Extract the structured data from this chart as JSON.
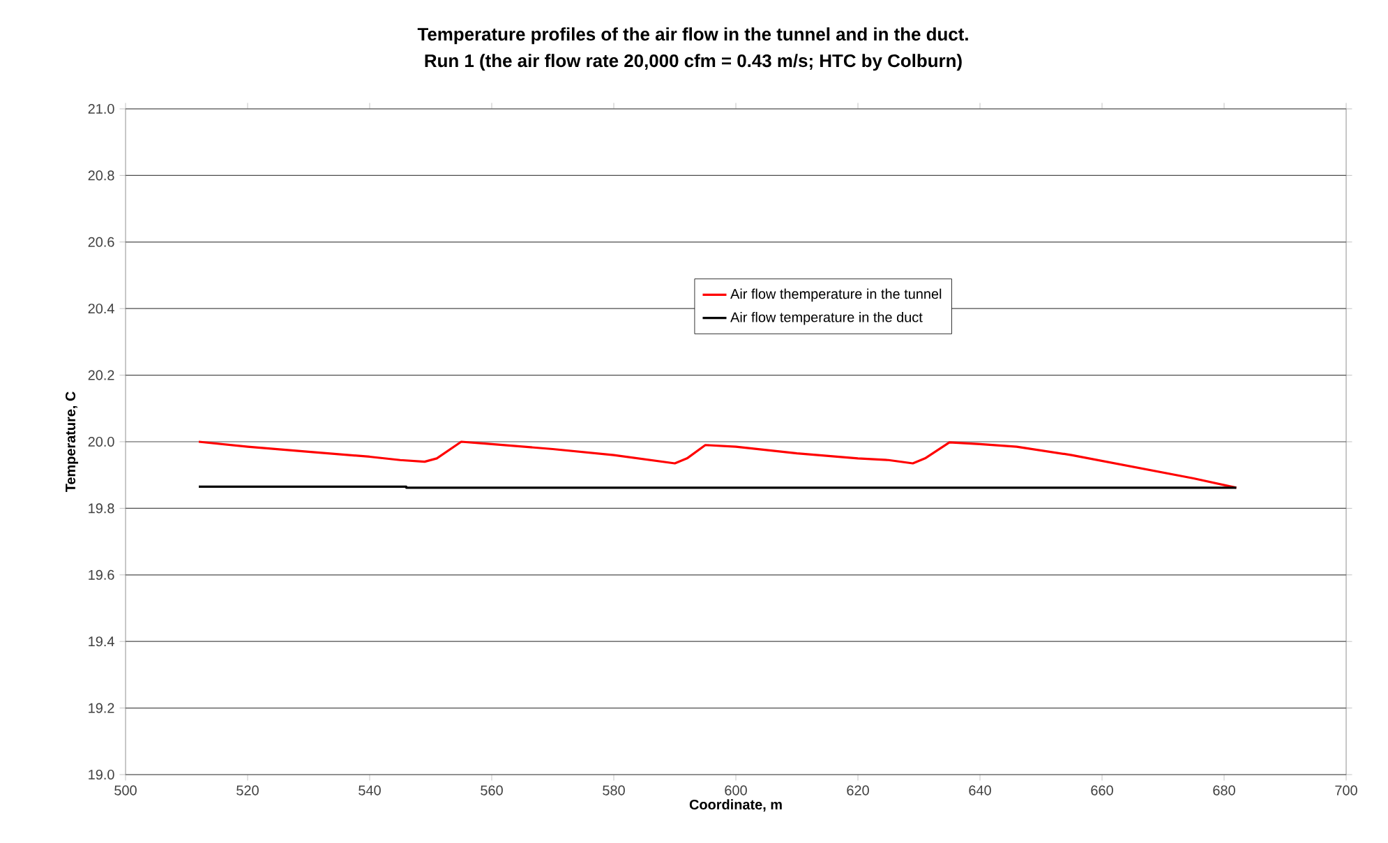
{
  "chart_data": {
    "type": "line",
    "title": "Temperature profiles of the air flow in the tunnel and in the duct.",
    "subtitle": "Run 1 (the air flow rate 20,000 cfm = 0.43 m/s; HTC by Colburn)",
    "xlabel": "Coordinate, m",
    "ylabel": "Temperature, C",
    "xlim": [
      500,
      700
    ],
    "xticks": [
      500,
      520,
      540,
      560,
      580,
      600,
      620,
      640,
      660,
      680,
      700
    ],
    "ylim": [
      19,
      21
    ],
    "yticks": [
      {
        "value": 19,
        "label": "19.0"
      },
      {
        "value": 19.2,
        "label": "19.2"
      },
      {
        "value": 19.4,
        "label": "19.4"
      },
      {
        "value": 19.6,
        "label": "19.6"
      },
      {
        "value": 19.8,
        "label": "19.8"
      },
      {
        "value": 20,
        "label": "20.0"
      },
      {
        "value": 20.2,
        "label": "20.2"
      },
      {
        "value": 20.4,
        "label": "20.4"
      },
      {
        "value": 20.6,
        "label": "20.6"
      },
      {
        "value": 20.8,
        "label": "20.8"
      },
      {
        "value": 21,
        "label": "21.0"
      }
    ],
    "grid": "y",
    "legend": "center",
    "series": [
      {
        "name": "Air flow themperature in the tunnel",
        "color": "#ff0000",
        "x": [
          512,
          520,
          530,
          540,
          545,
          549,
          551,
          555,
          560,
          570,
          580,
          590,
          592,
          595,
          600,
          610,
          620,
          625,
          629,
          631,
          635,
          640,
          646,
          655,
          665,
          675,
          682
        ],
        "values": [
          20.0,
          19.985,
          19.97,
          19.955,
          19.945,
          19.94,
          19.95,
          20.0,
          19.993,
          19.978,
          19.96,
          19.935,
          19.95,
          19.99,
          19.985,
          19.965,
          19.95,
          19.945,
          19.935,
          19.95,
          19.998,
          19.993,
          19.985,
          19.96,
          19.925,
          19.89,
          19.862
        ]
      },
      {
        "name": "Air flow temperature in the duct",
        "color": "#000000",
        "x": [
          512,
          546,
          546,
          682
        ],
        "values": [
          19.865,
          19.865,
          19.862,
          19.862
        ]
      }
    ]
  }
}
